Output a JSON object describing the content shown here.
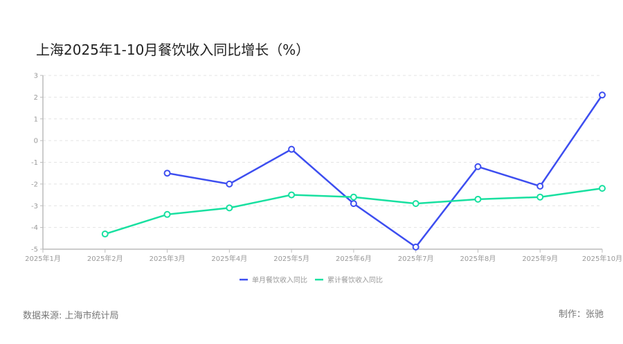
{
  "title": "上海2025年1-10月餐饮收入同比增长（%）",
  "footer": {
    "source": "数据来源: 上海市统计局",
    "author": "制作：张驰"
  },
  "chart_data": {
    "type": "line",
    "title": "上海2025年1-10月餐饮收入同比增长（%）",
    "categories": [
      "2025年1月",
      "2025年2月",
      "2025年3月",
      "2025年4月",
      "2025年5月",
      "2025年6月",
      "2025年7月",
      "2025年8月",
      "2025年9月",
      "2025年10月"
    ],
    "ylim": [
      -5,
      3
    ],
    "yticks": [
      "3",
      "2",
      "1",
      "0",
      "-1",
      "-2",
      "-3",
      "-4",
      "-5"
    ],
    "grid": true,
    "legend_position": "bottom-center",
    "series": [
      {
        "name": "单月餐饮收入同比",
        "color": "#3d4ef0",
        "values": [
          null,
          null,
          -1.5,
          -2.0,
          -0.4,
          -2.9,
          -4.9,
          -1.2,
          -2.1,
          2.1
        ]
      },
      {
        "name": "累计餐饮收入同比",
        "color": "#18e0a0",
        "values": [
          null,
          -4.3,
          -3.4,
          -3.1,
          -2.5,
          -2.6,
          -2.9,
          -2.7,
          -2.6,
          -2.2
        ]
      }
    ]
  }
}
